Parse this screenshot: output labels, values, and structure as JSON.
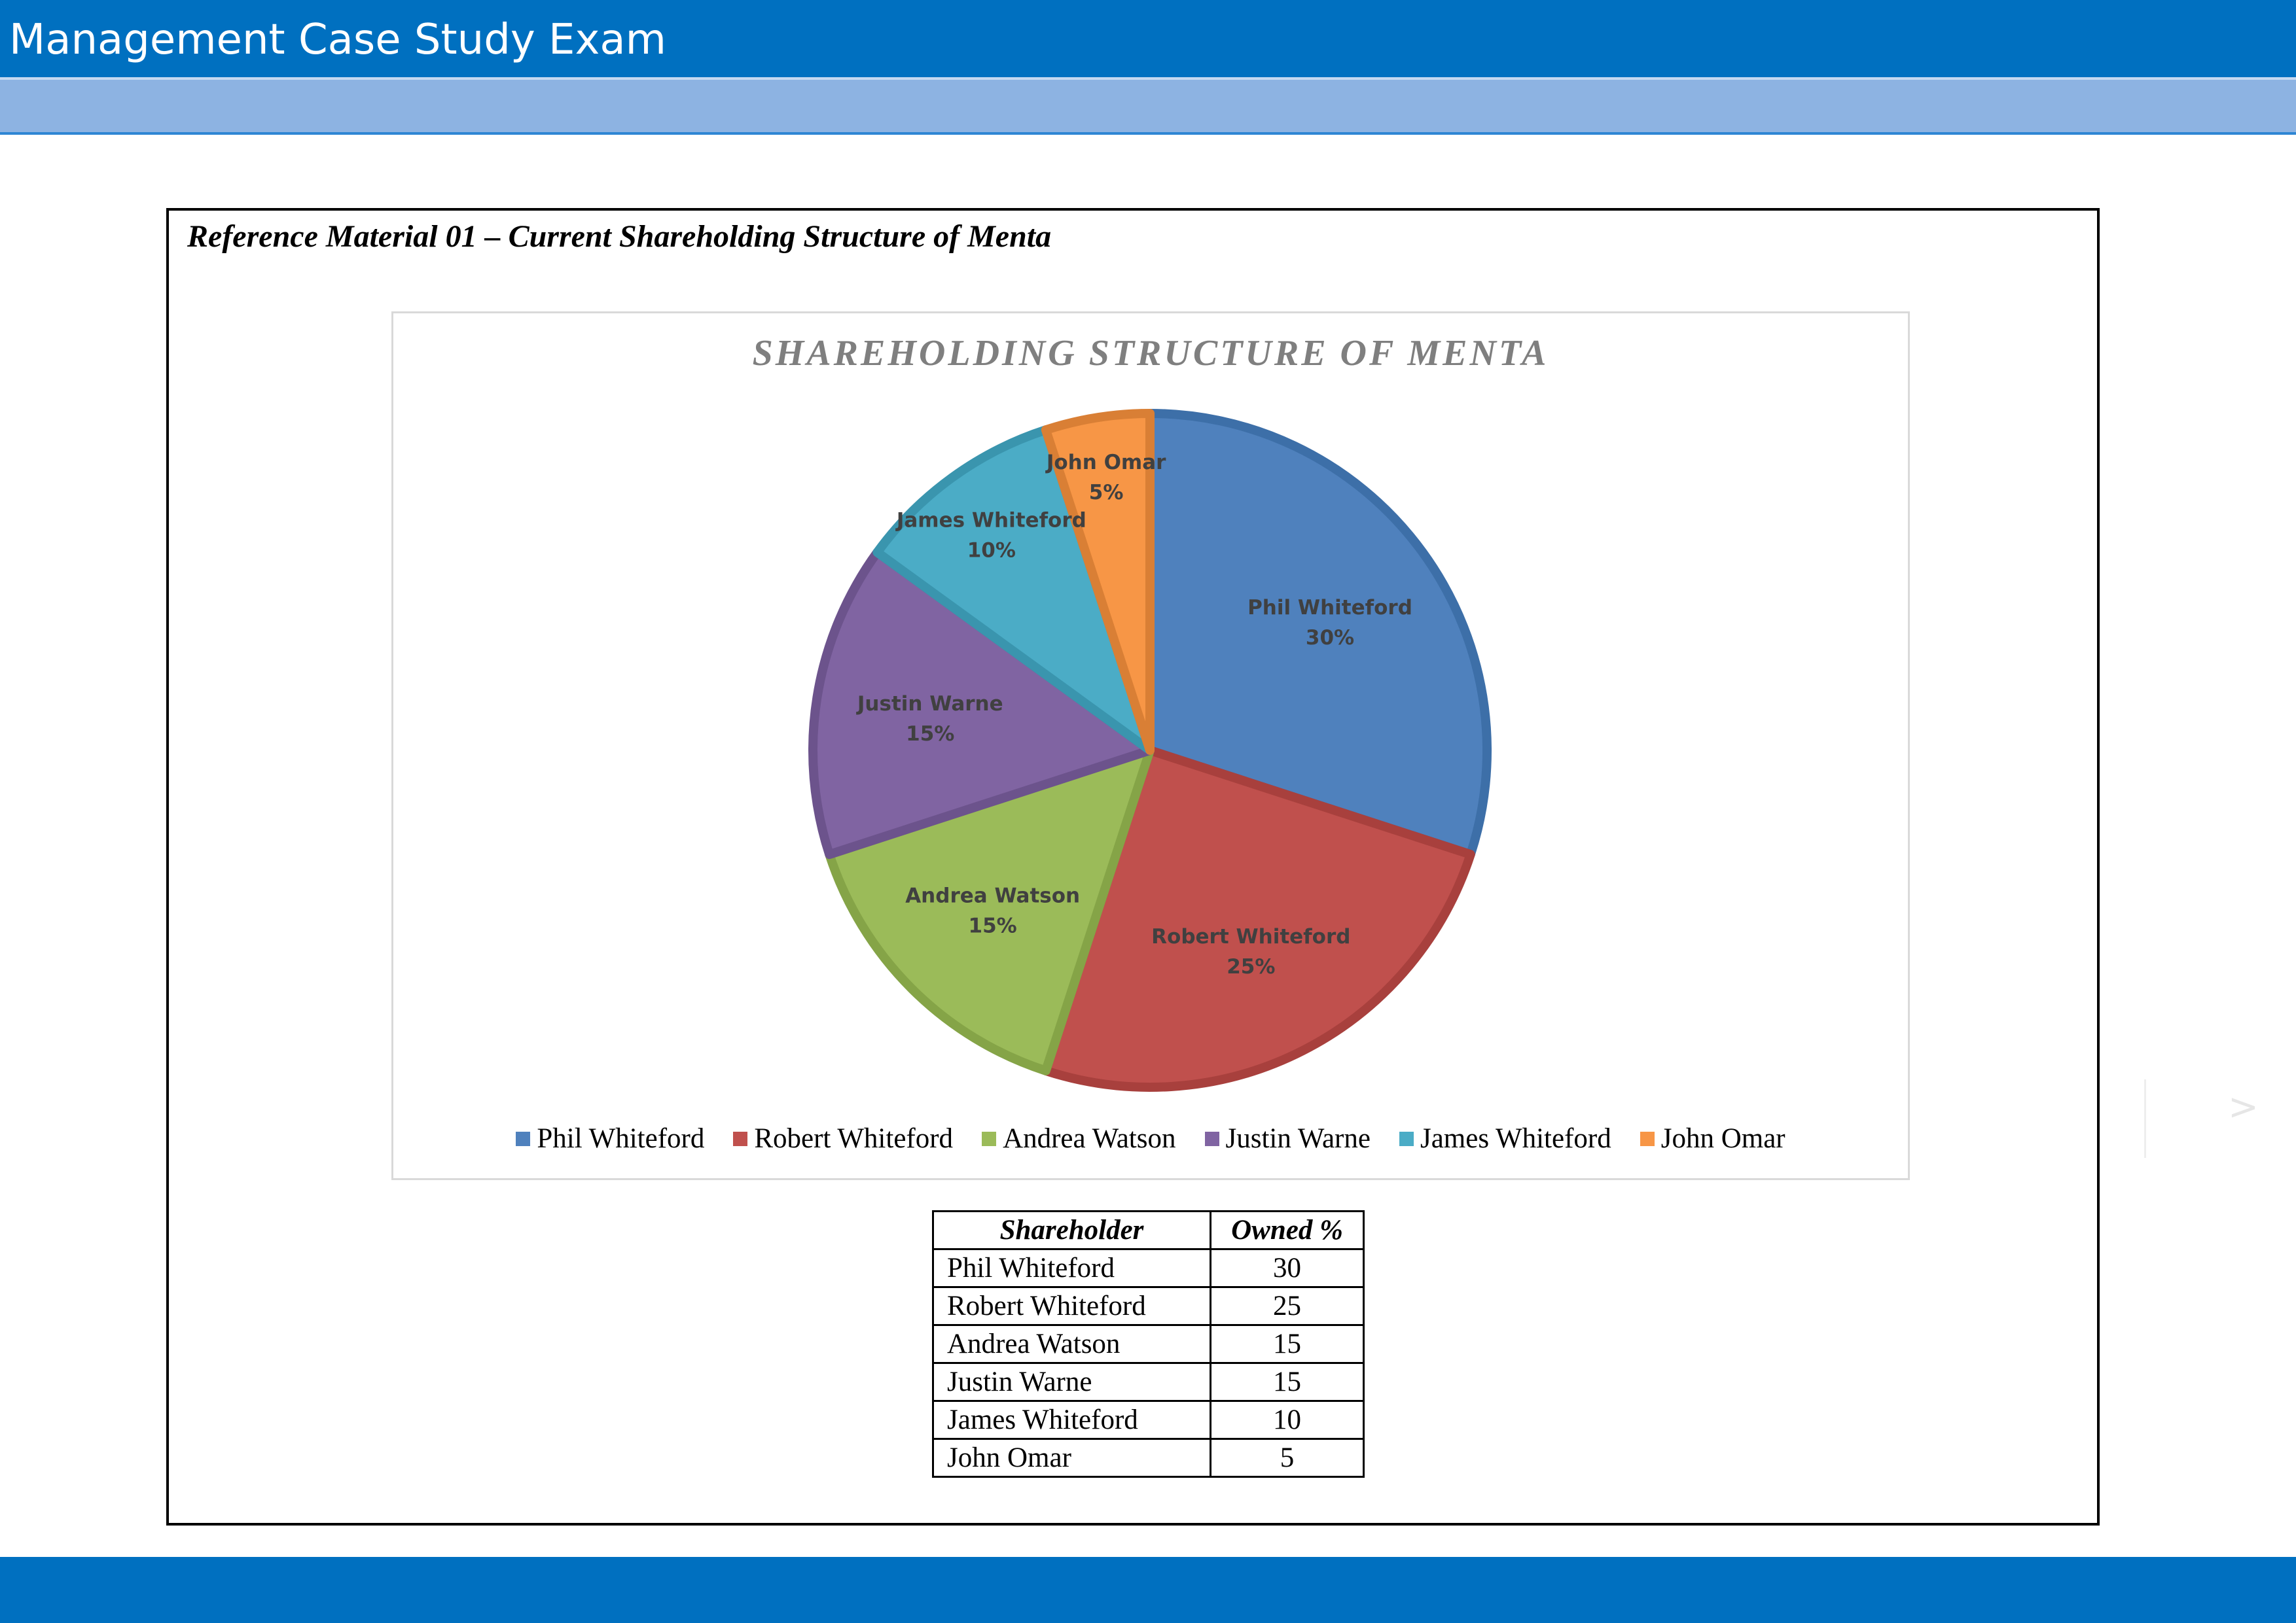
{
  "header": {
    "title": "Management Case Study Exam"
  },
  "reference": {
    "title": "Reference Material 01 – Current Shareholding Structure of Menta"
  },
  "chart_data": {
    "type": "pie",
    "title": "SHAREHOLDING STRUCTURE OF MENTA",
    "categories": [
      "Phil Whiteford",
      "Robert Whiteford",
      "Andrea Watson",
      "Justin Warne",
      "James Whiteford",
      "John Omar"
    ],
    "values": [
      30,
      25,
      15,
      15,
      10,
      5
    ],
    "labels": [
      "30%",
      "25%",
      "15%",
      "15%",
      "10%",
      "5%"
    ],
    "colors": [
      "#4f81bd",
      "#c0504d",
      "#9bbb59",
      "#8064a2",
      "#4bacc6",
      "#f79646"
    ],
    "edge_colors": [
      "#3d6fa8",
      "#a8403d",
      "#85a447",
      "#6c538c",
      "#3a95ae",
      "#d97f35"
    ],
    "legend_position": "bottom"
  },
  "table": {
    "headers": [
      "Shareholder",
      "Owned %"
    ],
    "rows": [
      {
        "name": "Phil Whiteford",
        "value": "30"
      },
      {
        "name": "Robert Whiteford",
        "value": "25"
      },
      {
        "name": "Andrea Watson",
        "value": "15"
      },
      {
        "name": "Justin Warne",
        "value": "15"
      },
      {
        "name": "James Whiteford",
        "value": "10"
      },
      {
        "name": "John Omar",
        "value": "5"
      }
    ]
  },
  "side_arrow": ">"
}
